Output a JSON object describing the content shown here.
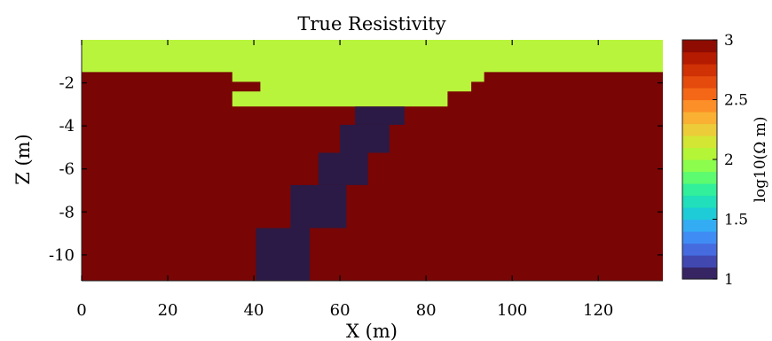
{
  "chart_data": {
    "type": "heatmap",
    "title": "True Resistivity",
    "xlabel": "X (m)",
    "ylabel": "Z (m)",
    "xlim": [
      0,
      135
    ],
    "ylim": [
      -11.2,
      0
    ],
    "xticks": [
      0,
      20,
      40,
      60,
      80,
      100,
      120
    ],
    "xtick_labels": [
      "0",
      "20",
      "40",
      "60",
      "80",
      "100",
      "120"
    ],
    "yticks": [
      -2,
      -4,
      -6,
      -8,
      -10
    ],
    "ytick_labels": [
      "-2",
      "-4",
      "-6",
      "-8",
      "-10"
    ],
    "colorbar": {
      "label": "log10(Ω m)",
      "range": [
        1,
        3
      ],
      "ticks": [
        1,
        1.5,
        2,
        2.5,
        3
      ],
      "tick_labels": [
        "1",
        "1.5",
        "2",
        "2.5",
        "3"
      ],
      "levels": 20,
      "colormap": "turbo"
    },
    "background_value": 3,
    "regions": [
      {
        "name": "surface layer",
        "value": 2.0,
        "color": "#b9f43c",
        "polygon": [
          [
            0,
            0
          ],
          [
            135,
            0
          ],
          [
            135,
            -1.5
          ],
          [
            93.5,
            -1.5
          ],
          [
            93.5,
            -1.95
          ],
          [
            90.5,
            -1.95
          ],
          [
            90.5,
            -2.4
          ],
          [
            85,
            -2.4
          ],
          [
            85,
            -3.1
          ],
          [
            35,
            -3.1
          ],
          [
            35,
            -2.4
          ],
          [
            41.5,
            -2.4
          ],
          [
            41.5,
            -1.95
          ],
          [
            35,
            -1.95
          ],
          [
            35,
            -1.5
          ],
          [
            0,
            -1.5
          ]
        ]
      },
      {
        "name": "dipping conductor",
        "value": 1.0,
        "color": "#2b1a45",
        "blocks": [
          {
            "x": [
              63.5,
              75
            ],
            "z": [
              -3.1,
              -3.95
            ]
          },
          {
            "x": [
              60,
              71.5
            ],
            "z": [
              -3.95,
              -5.25
            ]
          },
          {
            "x": [
              55,
              66.5
            ],
            "z": [
              -5.25,
              -6.75
            ]
          },
          {
            "x": [
              48.5,
              61.5
            ],
            "z": [
              -6.75,
              -8.75
            ]
          },
          {
            "x": [
              40.5,
              53
            ],
            "z": [
              -8.75,
              -11.2
            ]
          }
        ]
      }
    ],
    "colors": {
      "high": "#790505",
      "mid": "#b9f43c",
      "low": "#2b1a45"
    }
  }
}
